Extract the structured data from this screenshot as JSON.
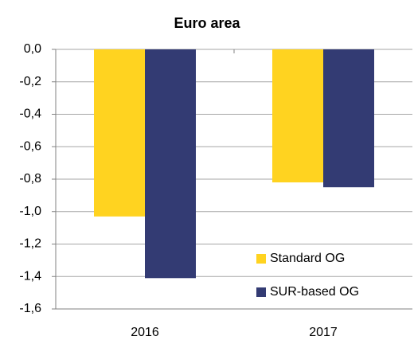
{
  "chart_data": {
    "type": "bar",
    "title": "Euro area",
    "categories": [
      "2016",
      "2017"
    ],
    "series": [
      {
        "name": "Standard OG",
        "color": "#ffd320",
        "values": [
          -1.03,
          -0.82
        ]
      },
      {
        "name": "SUR-based OG",
        "color": "#333b73",
        "values": [
          -1.41,
          -0.85
        ]
      }
    ],
    "ylim": [
      -1.6,
      0
    ],
    "yticks": [
      {
        "value": 0,
        "label": "0,0"
      },
      {
        "value": -0.2,
        "label": "-0,2"
      },
      {
        "value": -0.4,
        "label": "-0,4"
      },
      {
        "value": -0.6,
        "label": "-0,6"
      },
      {
        "value": -0.8,
        "label": "-0,8"
      },
      {
        "value": -1.0,
        "label": "-1,0"
      },
      {
        "value": -1.2,
        "label": "-1,2"
      },
      {
        "value": -1.4,
        "label": "-1,4"
      },
      {
        "value": -1.6,
        "label": "-1,6"
      }
    ],
    "grid": true,
    "legend": "bottom-right"
  }
}
